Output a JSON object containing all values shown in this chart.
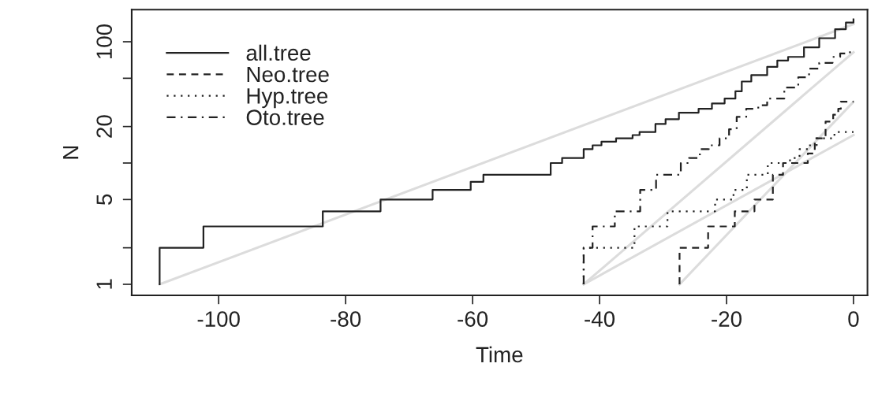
{
  "chart_data": {
    "type": "step",
    "xlabel": "Time",
    "ylabel": "N",
    "log": "y",
    "legend": "top left",
    "grid": false,
    "line_style": "solid",
    "xlim": [
      -113.7,
      2.2
    ],
    "ylim": [
      0.81,
      184
    ],
    "xticks": [
      -100,
      -80,
      -60,
      -40,
      -20,
      0
    ],
    "yticks": [
      1,
      {
        "value": 2,
        "label": null
      },
      5,
      {
        "value": 10,
        "label": null
      },
      20,
      {
        "value": 50,
        "label": null
      },
      100
    ],
    "series": [
      {
        "type": "line",
        "color": "#dcdcdc",
        "x": [
          -109.3,
          0
        ],
        "values": [
          1,
          140
        ]
      },
      {
        "type": "line",
        "color": "#dcdcdc",
        "x": [
          -42.5,
          0
        ],
        "values": [
          1,
          82
        ]
      },
      {
        "type": "line",
        "color": "#dcdcdc",
        "x": [
          -27.4,
          0
        ],
        "values": [
          1,
          32
        ]
      },
      {
        "type": "line",
        "color": "#dcdcdc",
        "x": [
          -42.5,
          0
        ],
        "values": [
          1,
          17
        ]
      },
      {
        "name": "all.tree",
        "color": "#222222",
        "line_style": "solid",
        "x": [
          -109.3,
          -109.3,
          -102.4,
          -83.6,
          -74.5,
          -66.3,
          -60.3,
          -58.3,
          -47.7,
          -45.9,
          -42.5,
          -41.1,
          -39.7,
          -37.4,
          -34.8,
          -33.7,
          -31.2,
          -29.6,
          -27.5,
          -24.4,
          -22.3,
          -20.3,
          -18.6,
          -17.6,
          -16.1,
          -13.6,
          -12.0,
          -10.3,
          -7.8,
          -5.4,
          -2.9,
          -1.2,
          0
        ],
        "values": [
          1,
          2,
          3,
          4,
          5,
          6,
          7,
          8,
          10,
          11,
          13,
          14,
          15,
          16,
          17,
          18,
          21,
          23,
          26,
          28,
          31,
          34,
          39,
          47,
          53,
          62,
          70,
          75,
          90,
          107,
          127,
          144,
          153
        ]
      },
      {
        "name": "Neo.tree",
        "color": "#222222",
        "line_style": "dashed",
        "x": [
          -27.4,
          -27.4,
          -22.9,
          -18.7,
          -15.6,
          -12.7,
          -11.1,
          -7.2,
          -6.1,
          -4.4,
          -3.2,
          -2.4,
          -2.0,
          0
        ],
        "values": [
          1,
          2,
          3,
          4,
          5,
          8,
          10,
          12,
          16,
          22,
          25,
          28,
          32,
          32
        ]
      },
      {
        "name": "Hyp.tree",
        "color": "#222222",
        "line_style": "dotted",
        "x": [
          -42.5,
          -42.5,
          -34.5,
          -29.3,
          -21.8,
          -18.9,
          -16.8,
          -13.5,
          -10.0,
          -8.5,
          -7.0,
          -5.8,
          -3.0,
          0
        ],
        "values": [
          1,
          2,
          3,
          4,
          5,
          6,
          8,
          10,
          11,
          13,
          14,
          16,
          18,
          18
        ]
      },
      {
        "name": "Oto.tree",
        "color": "#222222",
        "line_style": "dashdot",
        "x": [
          -42.5,
          -42.5,
          -41.1,
          -37.6,
          -33.6,
          -31.1,
          -27.2,
          -25.9,
          -24.2,
          -22.8,
          -21.1,
          -19.6,
          -18.4,
          -16.9,
          -15.0,
          -13.6,
          -10.9,
          -8.7,
          -7.0,
          -5.4,
          -3.3,
          -2.1,
          -1.1,
          0
        ],
        "values": [
          1,
          2,
          3,
          4,
          6,
          8,
          10,
          11,
          13,
          14,
          16,
          19,
          24,
          28,
          30,
          34,
          42,
          51,
          60,
          67,
          75,
          80,
          82,
          82
        ]
      }
    ]
  }
}
